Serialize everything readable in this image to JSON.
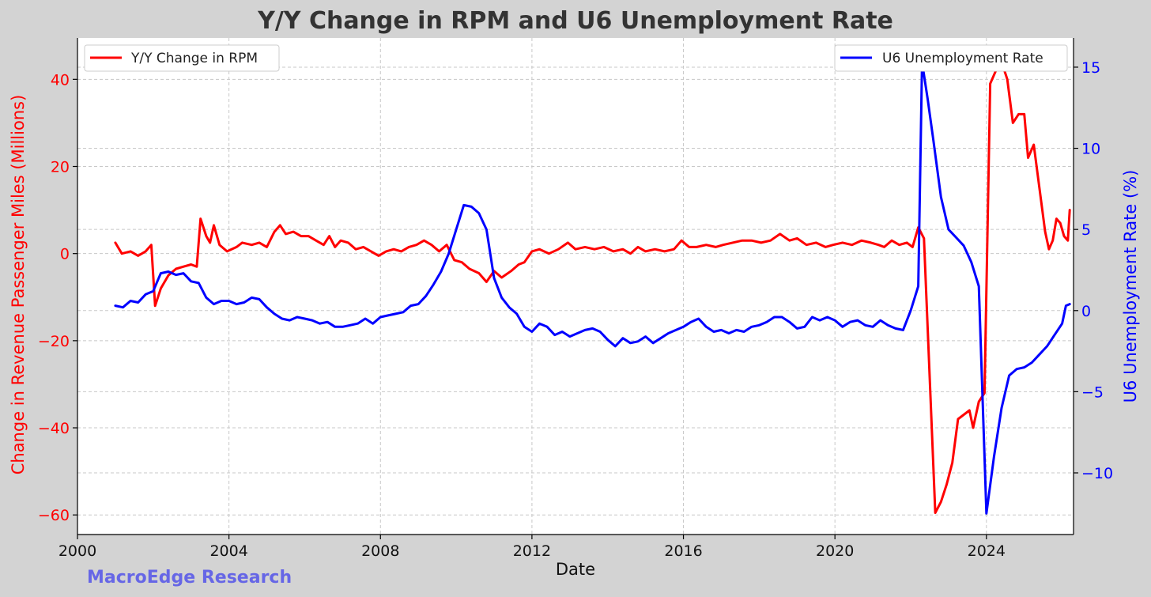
{
  "chart_data": {
    "type": "line",
    "title": "Y/Y Change in RPM and U6 Unemployment Rate",
    "xlabel": "Date",
    "x_ticks": [
      "2000",
      "2004",
      "2008",
      "2012",
      "2016",
      "2020",
      "2024"
    ],
    "xlim": [
      2000,
      2026.3
    ],
    "left_axis": {
      "label": "Change in Revenue Passenger Miles (Millions)",
      "ticks": [
        "−60",
        "−40",
        "−20",
        "0",
        "20",
        "40"
      ],
      "ylim": [
        -64.5,
        49.5
      ],
      "color": "#ff0000"
    },
    "right_axis": {
      "label": "U6 Unemployment Rate (%)",
      "ticks": [
        "−10",
        "−5",
        "0",
        "5",
        "10",
        "15"
      ],
      "ylim": [
        -13.8,
        16.8
      ],
      "color": "#0000ff"
    },
    "grid": true,
    "series": [
      {
        "name": "Y/Y Change in RPM",
        "axis": "left",
        "color": "#ff0000",
        "legend_position": "top-left",
        "points": [
          [
            2001.0,
            2.5
          ],
          [
            2001.17,
            0
          ],
          [
            2001.4,
            0.5
          ],
          [
            2001.6,
            -0.5
          ],
          [
            2001.8,
            0.5
          ],
          [
            2001.95,
            2.0
          ],
          [
            2002.05,
            -12
          ],
          [
            2002.2,
            -8
          ],
          [
            2002.4,
            -5
          ],
          [
            2002.6,
            -3.5
          ],
          [
            2002.8,
            -3
          ],
          [
            2003.0,
            -2.5
          ],
          [
            2003.15,
            -3
          ],
          [
            2003.25,
            8
          ],
          [
            2003.4,
            4
          ],
          [
            2003.5,
            2.5
          ],
          [
            2003.6,
            6.5
          ],
          [
            2003.75,
            2
          ],
          [
            2003.95,
            0.5
          ],
          [
            2004.2,
            1.5
          ],
          [
            2004.35,
            2.5
          ],
          [
            2004.6,
            2
          ],
          [
            2004.8,
            2.5
          ],
          [
            2005.0,
            1.5
          ],
          [
            2005.2,
            5
          ],
          [
            2005.35,
            6.5
          ],
          [
            2005.5,
            4.5
          ],
          [
            2005.7,
            5
          ],
          [
            2005.9,
            4
          ],
          [
            2006.1,
            4
          ],
          [
            2006.3,
            3
          ],
          [
            2006.5,
            2
          ],
          [
            2006.65,
            4
          ],
          [
            2006.8,
            1.5
          ],
          [
            2006.95,
            3
          ],
          [
            2007.15,
            2.5
          ],
          [
            2007.35,
            1
          ],
          [
            2007.55,
            1.5
          ],
          [
            2007.75,
            0.5
          ],
          [
            2007.95,
            -0.5
          ],
          [
            2008.15,
            0.5
          ],
          [
            2008.35,
            1
          ],
          [
            2008.55,
            0.5
          ],
          [
            2008.75,
            1.5
          ],
          [
            2008.95,
            2
          ],
          [
            2009.15,
            3
          ],
          [
            2009.35,
            2
          ],
          [
            2009.55,
            0.5
          ],
          [
            2009.75,
            2
          ],
          [
            2009.95,
            -1.5
          ],
          [
            2010.15,
            -2
          ],
          [
            2010.35,
            -3.5
          ],
          [
            2010.6,
            -4.5
          ],
          [
            2010.8,
            -6.5
          ],
          [
            2011.0,
            -4
          ],
          [
            2011.2,
            -5.5
          ],
          [
            2011.45,
            -4
          ],
          [
            2011.65,
            -2.5
          ],
          [
            2011.8,
            -2
          ],
          [
            2012.0,
            0.5
          ],
          [
            2012.2,
            1
          ],
          [
            2012.45,
            0
          ],
          [
            2012.7,
            1
          ],
          [
            2012.95,
            2.5
          ],
          [
            2013.15,
            1
          ],
          [
            2013.4,
            1.5
          ],
          [
            2013.65,
            1
          ],
          [
            2013.9,
            1.5
          ],
          [
            2014.15,
            0.5
          ],
          [
            2014.4,
            1
          ],
          [
            2014.6,
            0
          ],
          [
            2014.8,
            1.5
          ],
          [
            2015.0,
            0.5
          ],
          [
            2015.25,
            1
          ],
          [
            2015.5,
            0.5
          ],
          [
            2015.75,
            1
          ],
          [
            2015.95,
            3
          ],
          [
            2016.15,
            1.5
          ],
          [
            2016.35,
            1.5
          ],
          [
            2016.6,
            2
          ],
          [
            2016.85,
            1.5
          ],
          [
            2017.05,
            2
          ],
          [
            2017.3,
            2.5
          ],
          [
            2017.55,
            3
          ],
          [
            2017.8,
            3
          ],
          [
            2018.05,
            2.5
          ],
          [
            2018.3,
            3
          ],
          [
            2018.55,
            4.5
          ],
          [
            2018.8,
            3
          ],
          [
            2019.0,
            3.5
          ],
          [
            2019.25,
            2
          ],
          [
            2019.5,
            2.5
          ],
          [
            2019.75,
            1.5
          ],
          [
            2019.95,
            2
          ],
          [
            2020.2,
            2.5
          ],
          [
            2020.45,
            2
          ],
          [
            2020.7,
            3
          ],
          [
            2020.95,
            2.5
          ],
          [
            2021.15,
            2
          ],
          [
            2021.3,
            1.5
          ],
          [
            2021.5,
            3
          ],
          [
            2021.7,
            2
          ],
          [
            2021.9,
            2.5
          ],
          [
            2022.05,
            1.5
          ],
          [
            2022.2,
            6
          ],
          [
            2022.35,
            3.5
          ],
          [
            2022.65,
            -59.5
          ],
          [
            2022.8,
            -57
          ],
          [
            2022.95,
            -53
          ],
          [
            2023.1,
            -48
          ],
          [
            2023.25,
            -38
          ],
          [
            2023.4,
            -37
          ],
          [
            2023.55,
            -36
          ],
          [
            2023.65,
            -40
          ],
          [
            2023.8,
            -34
          ],
          [
            2023.95,
            -32
          ],
          [
            2024.1,
            39
          ],
          [
            2024.25,
            42
          ],
          [
            2024.4,
            44
          ],
          [
            2024.55,
            40
          ],
          [
            2024.7,
            30
          ],
          [
            2024.85,
            32
          ],
          [
            2025.0,
            32
          ],
          [
            2025.1,
            22
          ],
          [
            2025.25,
            25
          ],
          [
            2025.4,
            15
          ],
          [
            2025.55,
            5
          ],
          [
            2025.65,
            1
          ],
          [
            2025.75,
            3
          ],
          [
            2025.85,
            8
          ],
          [
            2025.95,
            7
          ],
          [
            2026.05,
            4
          ],
          [
            2026.15,
            3
          ],
          [
            2026.2,
            10
          ]
        ]
      },
      {
        "name": "U6 Unemployment Rate",
        "axis": "right",
        "color": "#0000ff",
        "legend_position": "top-right",
        "points": [
          [
            2001.0,
            0.3
          ],
          [
            2001.2,
            0.2
          ],
          [
            2001.4,
            0.6
          ],
          [
            2001.6,
            0.5
          ],
          [
            2001.8,
            1.0
          ],
          [
            2002.0,
            1.2
          ],
          [
            2002.2,
            2.3
          ],
          [
            2002.4,
            2.4
          ],
          [
            2002.6,
            2.2
          ],
          [
            2002.8,
            2.3
          ],
          [
            2003.0,
            1.8
          ],
          [
            2003.2,
            1.7
          ],
          [
            2003.4,
            0.8
          ],
          [
            2003.6,
            0.4
          ],
          [
            2003.8,
            0.6
          ],
          [
            2004.0,
            0.6
          ],
          [
            2004.2,
            0.4
          ],
          [
            2004.4,
            0.5
          ],
          [
            2004.6,
            0.8
          ],
          [
            2004.8,
            0.7
          ],
          [
            2005.0,
            0.2
          ],
          [
            2005.2,
            -0.2
          ],
          [
            2005.4,
            -0.5
          ],
          [
            2005.6,
            -0.6
          ],
          [
            2005.8,
            -0.4
          ],
          [
            2006.0,
            -0.5
          ],
          [
            2006.2,
            -0.6
          ],
          [
            2006.4,
            -0.8
          ],
          [
            2006.6,
            -0.7
          ],
          [
            2006.8,
            -1.0
          ],
          [
            2007.0,
            -1.0
          ],
          [
            2007.2,
            -0.9
          ],
          [
            2007.4,
            -0.8
          ],
          [
            2007.6,
            -0.5
          ],
          [
            2007.8,
            -0.8
          ],
          [
            2008.0,
            -0.4
          ],
          [
            2008.2,
            -0.3
          ],
          [
            2008.4,
            -0.2
          ],
          [
            2008.6,
            -0.1
          ],
          [
            2008.8,
            0.3
          ],
          [
            2009.0,
            0.4
          ],
          [
            2009.2,
            0.9
          ],
          [
            2009.4,
            1.6
          ],
          [
            2009.6,
            2.4
          ],
          [
            2009.8,
            3.5
          ],
          [
            2010.0,
            5.0
          ],
          [
            2010.2,
            6.5
          ],
          [
            2010.4,
            6.4
          ],
          [
            2010.6,
            6.0
          ],
          [
            2010.8,
            5.0
          ],
          [
            2011.0,
            2.0
          ],
          [
            2011.2,
            0.8
          ],
          [
            2011.4,
            0.2
          ],
          [
            2011.6,
            -0.2
          ],
          [
            2011.8,
            -1.0
          ],
          [
            2012.0,
            -1.3
          ],
          [
            2012.2,
            -0.8
          ],
          [
            2012.4,
            -1.0
          ],
          [
            2012.6,
            -1.5
          ],
          [
            2012.8,
            -1.3
          ],
          [
            2013.0,
            -1.6
          ],
          [
            2013.2,
            -1.4
          ],
          [
            2013.4,
            -1.2
          ],
          [
            2013.6,
            -1.1
          ],
          [
            2013.8,
            -1.3
          ],
          [
            2014.0,
            -1.8
          ],
          [
            2014.2,
            -2.2
          ],
          [
            2014.4,
            -1.7
          ],
          [
            2014.6,
            -2.0
          ],
          [
            2014.8,
            -1.9
          ],
          [
            2015.0,
            -1.6
          ],
          [
            2015.2,
            -2.0
          ],
          [
            2015.4,
            -1.7
          ],
          [
            2015.6,
            -1.4
          ],
          [
            2015.8,
            -1.2
          ],
          [
            2016.0,
            -1.0
          ],
          [
            2016.2,
            -0.7
          ],
          [
            2016.4,
            -0.5
          ],
          [
            2016.6,
            -1.0
          ],
          [
            2016.8,
            -1.3
          ],
          [
            2017.0,
            -1.2
          ],
          [
            2017.2,
            -1.4
          ],
          [
            2017.4,
            -1.2
          ],
          [
            2017.6,
            -1.3
          ],
          [
            2017.8,
            -1.0
          ],
          [
            2018.0,
            -0.9
          ],
          [
            2018.2,
            -0.7
          ],
          [
            2018.4,
            -0.4
          ],
          [
            2018.6,
            -0.4
          ],
          [
            2018.8,
            -0.7
          ],
          [
            2019.0,
            -1.1
          ],
          [
            2019.2,
            -1.0
          ],
          [
            2019.4,
            -0.4
          ],
          [
            2019.6,
            -0.6
          ],
          [
            2019.8,
            -0.4
          ],
          [
            2020.0,
            -0.6
          ],
          [
            2020.2,
            -1.0
          ],
          [
            2020.4,
            -0.7
          ],
          [
            2020.6,
            -0.6
          ],
          [
            2020.8,
            -0.9
          ],
          [
            2021.0,
            -1.0
          ],
          [
            2021.2,
            -0.6
          ],
          [
            2021.4,
            -0.9
          ],
          [
            2021.6,
            -1.1
          ],
          [
            2021.8,
            -1.2
          ],
          [
            2022.0,
            0.0
          ],
          [
            2022.2,
            1.5
          ],
          [
            2022.3,
            15.3
          ],
          [
            2022.45,
            13.0
          ],
          [
            2022.6,
            10.5
          ],
          [
            2022.8,
            7.0
          ],
          [
            2023.0,
            5.0
          ],
          [
            2023.2,
            4.5
          ],
          [
            2023.4,
            4.0
          ],
          [
            2023.6,
            3.0
          ],
          [
            2023.8,
            1.5
          ],
          [
            2024.0,
            -12.5
          ],
          [
            2024.2,
            -9.0
          ],
          [
            2024.4,
            -6.0
          ],
          [
            2024.6,
            -4.0
          ],
          [
            2024.8,
            -3.6
          ],
          [
            2025.0,
            -3.5
          ],
          [
            2025.2,
            -3.2
          ],
          [
            2025.4,
            -2.7
          ],
          [
            2025.6,
            -2.2
          ],
          [
            2025.8,
            -1.5
          ],
          [
            2026.0,
            -0.8
          ],
          [
            2026.1,
            0.3
          ],
          [
            2026.2,
            0.4
          ]
        ]
      }
    ]
  },
  "watermark": "MacroEdge Research"
}
